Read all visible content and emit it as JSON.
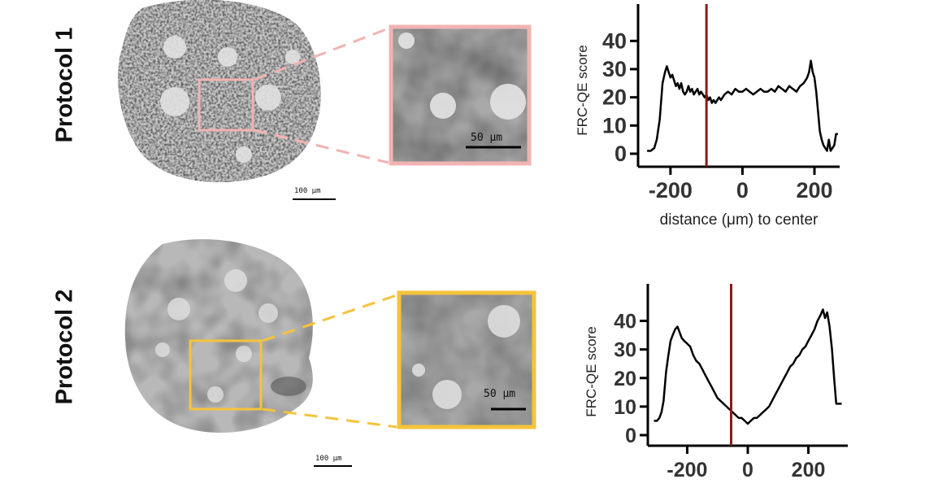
{
  "rows": [
    {
      "label": "Protocol 1",
      "scale_main": "100 μm",
      "scale_inset": "50 μm",
      "inset_color": "#f2b3b3"
    },
    {
      "label": "Protocol 2",
      "scale_main": "100 μm",
      "scale_inset": "50 μm",
      "inset_color": "#f5c33b"
    }
  ],
  "chart_data": [
    {
      "type": "line",
      "title": "",
      "xlabel": "distance (μm) to center",
      "ylabel": "FRC-QE score",
      "xlim": [
        -290,
        270
      ],
      "ylim": [
        0,
        45
      ],
      "xticks": [
        -200,
        0,
        200
      ],
      "yticks": [
        0,
        10,
        20,
        30,
        40
      ],
      "marker_x": -100,
      "marker_color": "#8b1a1a",
      "line_color": "#000000",
      "x": [
        -265,
        -255,
        -245,
        -238,
        -230,
        -222,
        -215,
        -210,
        -205,
        -200,
        -195,
        -190,
        -185,
        -180,
        -175,
        -170,
        -165,
        -160,
        -155,
        -150,
        -145,
        -140,
        -135,
        -130,
        -125,
        -120,
        -115,
        -110,
        -105,
        -100,
        -95,
        -90,
        -85,
        -80,
        -75,
        -70,
        -65,
        -60,
        -55,
        -50,
        -40,
        -30,
        -20,
        -10,
        0,
        10,
        20,
        30,
        40,
        50,
        60,
        70,
        80,
        90,
        100,
        110,
        120,
        130,
        140,
        150,
        160,
        170,
        175,
        180,
        185,
        190,
        195,
        200,
        205,
        210,
        215,
        220,
        225,
        230,
        235,
        240,
        245,
        250,
        255,
        260,
        265
      ],
      "y": [
        1,
        1,
        2,
        5,
        12,
        25,
        29,
        31,
        29,
        27,
        28,
        26,
        24,
        25,
        23,
        25,
        22,
        21,
        22,
        24,
        22,
        23,
        21,
        22,
        23,
        21,
        22,
        21,
        20,
        21,
        19,
        20,
        18,
        19,
        18,
        19,
        20,
        19,
        20,
        21,
        22,
        21,
        23,
        22,
        22,
        23,
        22,
        21,
        22,
        23,
        22,
        22,
        23,
        22,
        24,
        23,
        22,
        24,
        23,
        22,
        24,
        25,
        26,
        27,
        29,
        33,
        29,
        27,
        22,
        15,
        8,
        5,
        3,
        2,
        1,
        5,
        1,
        2,
        3,
        7,
        7
      ]
    },
    {
      "type": "line",
      "title": "",
      "xlabel": "",
      "ylabel": "FRC-QE score",
      "xlim": [
        -330,
        330
      ],
      "ylim": [
        0,
        45
      ],
      "xticks": [
        -200,
        0,
        200
      ],
      "yticks": [
        0,
        10,
        20,
        30,
        40
      ],
      "marker_x": -55,
      "marker_color": "#8b1a1a",
      "line_color": "#000000",
      "x": [
        -310,
        -300,
        -292,
        -285,
        -278,
        -270,
        -262,
        -255,
        -248,
        -240,
        -232,
        -225,
        -218,
        -210,
        -200,
        -190,
        -180,
        -170,
        -160,
        -150,
        -140,
        -130,
        -120,
        -110,
        -100,
        -90,
        -80,
        -70,
        -60,
        -50,
        -40,
        -30,
        -20,
        -10,
        0,
        10,
        20,
        30,
        40,
        50,
        60,
        70,
        80,
        90,
        100,
        110,
        120,
        130,
        140,
        150,
        160,
        170,
        180,
        190,
        200,
        210,
        220,
        230,
        240,
        248,
        255,
        262,
        270,
        278,
        285,
        292,
        300,
        310
      ],
      "y": [
        5,
        5,
        6,
        8,
        12,
        22,
        28,
        33,
        35,
        37,
        38,
        36,
        34,
        33,
        32,
        31,
        28,
        26,
        25,
        23,
        21,
        19,
        17,
        15,
        13,
        12,
        11,
        10,
        9,
        8,
        7,
        6,
        6,
        5,
        4,
        5,
        6,
        6,
        7,
        8,
        9,
        10,
        12,
        14,
        16,
        18,
        20,
        22,
        24,
        25,
        27,
        28,
        30,
        31,
        33,
        35,
        37,
        40,
        42,
        44,
        41,
        43,
        38,
        30,
        20,
        11,
        11,
        11
      ]
    }
  ]
}
